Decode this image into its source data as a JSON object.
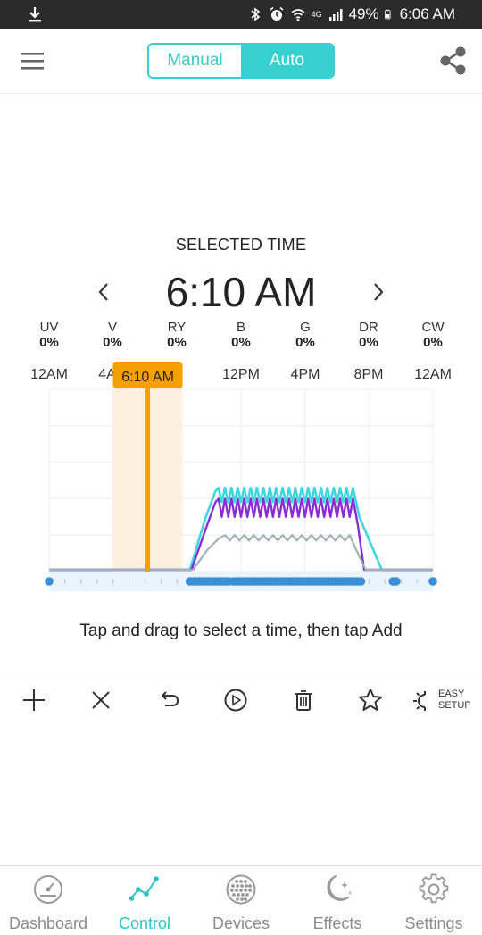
{
  "status_bar": {
    "battery": "49%",
    "time": "6:06 AM",
    "network": "4G"
  },
  "header": {
    "mode_manual": "Manual",
    "mode_auto": "Auto",
    "active_mode": "Auto"
  },
  "selected_time": {
    "title": "SELECTED TIME",
    "value": "6:10 AM"
  },
  "channels": [
    {
      "label": "UV",
      "value": "0%"
    },
    {
      "label": "V",
      "value": "0%"
    },
    {
      "label": "RY",
      "value": "0%"
    },
    {
      "label": "B",
      "value": "0%"
    },
    {
      "label": "G",
      "value": "0%"
    },
    {
      "label": "DR",
      "value": "0%"
    },
    {
      "label": "CW",
      "value": "0%"
    }
  ],
  "time_axis": [
    "12AM",
    "4A",
    "12PM",
    "4PM",
    "8PM",
    "12AM"
  ],
  "marker": {
    "label": "6:10 AM",
    "hour": 6.17
  },
  "colors": {
    "accent": "#35d0cf",
    "marker": "#f5a000",
    "marker_band": "#fdf0df",
    "series_cyan": "#3fd6e0",
    "series_purple": "#8a2bd6",
    "series_gray": "#9fb2b5",
    "points": "#3a8fd8"
  },
  "chart_data": {
    "type": "line",
    "x_unit": "hour of day",
    "xlim": [
      0,
      24
    ],
    "ylim": [
      0,
      100
    ],
    "grid": true,
    "series": [
      {
        "x": [
          0,
          8.8,
          9.8,
          10.4,
          10.6,
          10.8,
          11.0,
          11.2,
          11.4,
          11.6,
          11.8,
          12.0,
          12.2,
          12.4,
          12.6,
          12.8,
          13.0,
          13.2,
          13.4,
          13.6,
          13.8,
          14.0,
          14.2,
          14.4,
          14.6,
          14.8,
          15.0,
          15.2,
          15.4,
          15.6,
          15.8,
          16.0,
          16.2,
          16.4,
          16.6,
          16.8,
          17.0,
          17.2,
          17.4,
          17.6,
          17.8,
          18.0,
          18.2,
          18.4,
          18.6,
          18.8,
          19.0,
          19.4,
          20.8,
          24
        ],
        "y": [
          1,
          1,
          30,
          44,
          46,
          38,
          46,
          38,
          46,
          38,
          46,
          38,
          46,
          38,
          46,
          38,
          46,
          38,
          46,
          38,
          46,
          38,
          46,
          38,
          46,
          38,
          46,
          38,
          46,
          38,
          46,
          38,
          46,
          38,
          46,
          38,
          46,
          38,
          46,
          38,
          46,
          38,
          46,
          38,
          46,
          38,
          46,
          30,
          1,
          1
        ]
      },
      {
        "x": [
          0,
          8.9,
          9.9,
          10.4,
          10.6,
          10.8,
          11.0,
          11.2,
          11.4,
          11.6,
          11.8,
          12.0,
          12.2,
          12.4,
          12.6,
          12.8,
          13.0,
          13.2,
          13.4,
          13.6,
          13.8,
          14.0,
          14.2,
          14.4,
          14.6,
          14.8,
          15.0,
          15.2,
          15.4,
          15.6,
          15.8,
          16.0,
          16.2,
          16.4,
          16.6,
          16.8,
          17.0,
          17.2,
          17.4,
          17.6,
          17.8,
          18.0,
          18.2,
          18.4,
          18.6,
          18.8,
          19.0,
          19.3,
          19.7,
          24
        ],
        "y": [
          1,
          1,
          26,
          38,
          40,
          30,
          40,
          30,
          40,
          30,
          40,
          30,
          40,
          30,
          40,
          30,
          40,
          30,
          40,
          30,
          40,
          30,
          40,
          30,
          40,
          30,
          40,
          30,
          40,
          30,
          40,
          30,
          40,
          30,
          40,
          30,
          40,
          30,
          40,
          30,
          40,
          30,
          40,
          30,
          40,
          30,
          40,
          26,
          1,
          1
        ]
      },
      {
        "x": [
          0,
          9.0,
          9.9,
          10.6,
          11.0,
          11.3,
          11.6,
          11.9,
          12.2,
          12.5,
          12.8,
          13.1,
          13.4,
          13.7,
          14.0,
          14.3,
          14.6,
          14.9,
          15.2,
          15.5,
          15.8,
          16.1,
          16.4,
          16.7,
          17.0,
          17.3,
          17.6,
          17.9,
          18.2,
          18.5,
          18.8,
          19.2,
          19.8,
          24
        ],
        "y": [
          1,
          1,
          12,
          18,
          20,
          17,
          20,
          17,
          20,
          17,
          20,
          17,
          20,
          17,
          20,
          17,
          20,
          17,
          20,
          17,
          20,
          17,
          20,
          17,
          20,
          17,
          20,
          17,
          20,
          17,
          20,
          12,
          1,
          1
        ]
      }
    ],
    "points_x": [
      0,
      8.8,
      9.0,
      9.2,
      9.4,
      9.6,
      9.8,
      10.0,
      10.2,
      10.4,
      10.6,
      10.8,
      11.0,
      11.2,
      11.5,
      11.7,
      11.9,
      12.1,
      12.3,
      12.5,
      12.7,
      12.9,
      13.1,
      13.3,
      13.5,
      13.7,
      13.9,
      14.1,
      14.3,
      14.5,
      14.7,
      14.9,
      15.1,
      15.3,
      15.5,
      15.7,
      15.9,
      16.1,
      16.3,
      16.5,
      16.7,
      16.9,
      17.1,
      17.3,
      17.5,
      17.7,
      17.9,
      18.1,
      18.3,
      18.5,
      18.7,
      18.9,
      19.1,
      19.3,
      19.5,
      21.5,
      21.7,
      24
    ]
  },
  "hint": "Tap and drag to select a time, then tap Add",
  "toolbar": {
    "easy_setup_line1": "EASY",
    "easy_setup_line2": "SETUP"
  },
  "bottom_nav": [
    {
      "label": "Dashboard"
    },
    {
      "label": "Control"
    },
    {
      "label": "Devices"
    },
    {
      "label": "Effects"
    },
    {
      "label": "Settings"
    }
  ]
}
